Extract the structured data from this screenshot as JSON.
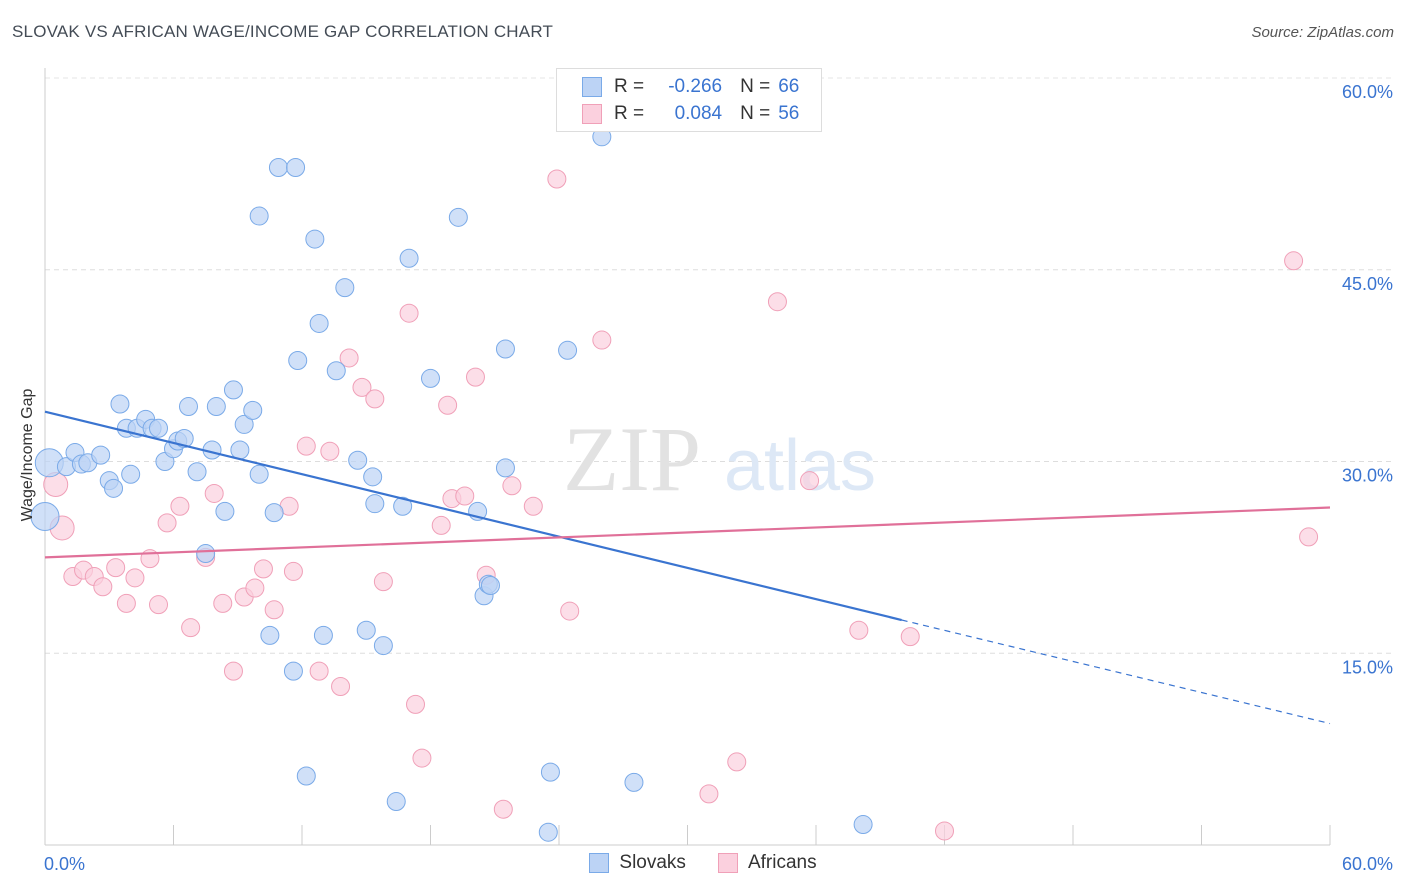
{
  "title": "SLOVAK VS AFRICAN WAGE/INCOME GAP CORRELATION CHART",
  "source": "Source: ZipAtlas.com",
  "watermark": {
    "zip": "ZIP",
    "atlas": "atlas"
  },
  "legend": {
    "rows": [
      {
        "r_label": "R =",
        "r_value": "-0.266",
        "n_label": "N =",
        "n_value": "66",
        "color": "#7aaae8",
        "fill": "#bcd3f5"
      },
      {
        "r_label": "R =",
        "r_value": "0.084",
        "n_label": "N =",
        "n_value": "56",
        "color": "#f0a0b8",
        "fill": "#fbd0de"
      }
    ],
    "series": [
      "Slovaks",
      "Africans"
    ]
  },
  "colors": {
    "slovak_line": "#3a74d0",
    "african_line": "#e07099",
    "tick_text": "#3a74d0",
    "grid": "#dddddd"
  },
  "chart_data": {
    "type": "scatter",
    "xlabel": "",
    "ylabel": "Wage/Income Gap",
    "xlim": [
      0,
      60
    ],
    "ylim": [
      0,
      60
    ],
    "x_tick_labels": [
      "0.0%",
      "60.0%"
    ],
    "y_ticks": [
      15,
      30,
      45,
      60
    ],
    "y_tick_labels": [
      "15.0%",
      "30.0%",
      "45.0%",
      "60.0%"
    ],
    "grid": true,
    "legend_position": "top-center",
    "series": [
      {
        "name": "Slovaks",
        "color": "#7aaae8",
        "trend": {
          "x": [
            0,
            40
          ],
          "y": [
            33.9,
            17.6
          ],
          "dashed_to": [
            60,
            9.5
          ]
        },
        "points": [
          [
            0,
            25.7
          ],
          [
            0.2,
            29.9
          ],
          [
            1,
            29.6
          ],
          [
            1.4,
            30.7
          ],
          [
            1.7,
            29.8
          ],
          [
            2,
            29.9
          ],
          [
            2.6,
            30.5
          ],
          [
            3,
            28.5
          ],
          [
            3.2,
            27.9
          ],
          [
            3.5,
            34.5
          ],
          [
            3.8,
            32.6
          ],
          [
            4,
            29
          ],
          [
            4.3,
            32.6
          ],
          [
            4.7,
            33.3
          ],
          [
            5,
            32.6
          ],
          [
            5.3,
            32.6
          ],
          [
            5.6,
            30
          ],
          [
            6,
            31
          ],
          [
            6.2,
            31.6
          ],
          [
            6.5,
            31.8
          ],
          [
            6.7,
            34.3
          ],
          [
            7.1,
            29.2
          ],
          [
            7.5,
            22.8
          ],
          [
            7.8,
            30.9
          ],
          [
            8,
            34.3
          ],
          [
            8.4,
            26.1
          ],
          [
            8.8,
            35.6
          ],
          [
            9.1,
            30.9
          ],
          [
            9.3,
            32.9
          ],
          [
            9.7,
            34
          ],
          [
            10,
            29
          ],
          [
            10.5,
            16.4
          ],
          [
            10.7,
            26
          ],
          [
            10.9,
            53
          ],
          [
            11.6,
            13.6
          ],
          [
            11.7,
            53
          ],
          [
            10,
            49.2
          ],
          [
            12.2,
            5.4
          ],
          [
            12.6,
            47.4
          ],
          [
            12.8,
            40.8
          ],
          [
            11.8,
            37.9
          ],
          [
            13,
            16.4
          ],
          [
            13.6,
            37.1
          ],
          [
            14,
            43.6
          ],
          [
            14.6,
            30.1
          ],
          [
            15,
            16.8
          ],
          [
            15.3,
            28.8
          ],
          [
            15.4,
            26.7
          ],
          [
            15.8,
            15.6
          ],
          [
            16.4,
            3.4
          ],
          [
            16.7,
            26.5
          ],
          [
            17,
            45.9
          ],
          [
            18,
            36.5
          ],
          [
            19.3,
            49.1
          ],
          [
            20.2,
            26.1
          ],
          [
            20.5,
            19.5
          ],
          [
            20.7,
            20.4
          ],
          [
            21.5,
            29.5
          ],
          [
            21.5,
            38.8
          ],
          [
            23.5,
            1
          ],
          [
            23.6,
            5.7
          ],
          [
            24.4,
            38.7
          ],
          [
            26,
            55.4
          ],
          [
            27.5,
            4.9
          ],
          [
            38.2,
            1.6
          ],
          [
            20.8,
            20.3
          ]
        ]
      },
      {
        "name": "Africans",
        "color": "#f0a0b8",
        "trend": {
          "x": [
            0,
            60
          ],
          "y": [
            22.5,
            26.4
          ]
        },
        "points": [
          [
            0.5,
            28.2
          ],
          [
            0.8,
            24.8
          ],
          [
            1.3,
            21
          ],
          [
            1.8,
            21.5
          ],
          [
            2.3,
            21
          ],
          [
            2.7,
            20.2
          ],
          [
            3.3,
            21.7
          ],
          [
            3.8,
            18.9
          ],
          [
            4.2,
            20.9
          ],
          [
            4.9,
            22.4
          ],
          [
            5.3,
            18.8
          ],
          [
            5.7,
            25.2
          ],
          [
            6.3,
            26.5
          ],
          [
            6.8,
            17
          ],
          [
            7.5,
            22.5
          ],
          [
            7.9,
            27.5
          ],
          [
            8.3,
            18.9
          ],
          [
            8.8,
            13.6
          ],
          [
            9.3,
            19.4
          ],
          [
            9.8,
            20.1
          ],
          [
            10.2,
            21.6
          ],
          [
            10.7,
            18.4
          ],
          [
            11.4,
            26.5
          ],
          [
            11.6,
            21.4
          ],
          [
            12.2,
            31.2
          ],
          [
            12.8,
            13.6
          ],
          [
            13.3,
            30.8
          ],
          [
            13.8,
            12.4
          ],
          [
            14.2,
            38.1
          ],
          [
            14.8,
            35.8
          ],
          [
            15.4,
            34.9
          ],
          [
            15.8,
            20.6
          ],
          [
            17,
            41.6
          ],
          [
            17.3,
            11
          ],
          [
            17.6,
            6.8
          ],
          [
            18.5,
            25
          ],
          [
            18.8,
            34.4
          ],
          [
            19,
            27.1
          ],
          [
            19.6,
            27.3
          ],
          [
            20.1,
            36.6
          ],
          [
            20.6,
            21.1
          ],
          [
            21.4,
            2.8
          ],
          [
            21.8,
            28.1
          ],
          [
            22.8,
            26.5
          ],
          [
            23.9,
            52.1
          ],
          [
            24.5,
            18.3
          ],
          [
            26,
            39.5
          ],
          [
            31,
            4
          ],
          [
            32.3,
            6.5
          ],
          [
            34.2,
            42.5
          ],
          [
            35.7,
            28.5
          ],
          [
            38,
            16.8
          ],
          [
            40.4,
            16.3
          ],
          [
            42,
            1.1
          ],
          [
            58.3,
            45.7
          ],
          [
            59,
            24.1
          ]
        ]
      }
    ]
  }
}
